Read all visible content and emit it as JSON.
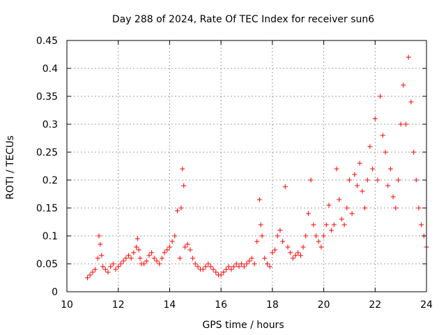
{
  "chart_data": {
    "type": "scatter",
    "title": "Day 288 of 2024, Rate Of TEC Index for receiver sun6",
    "xlabel": "GPS time / hours",
    "ylabel": "ROTI / TECUs",
    "xlim": [
      10,
      24
    ],
    "ylim": [
      0,
      0.45
    ],
    "x_ticks": [
      "10",
      "12",
      "14",
      "16",
      "18",
      "20",
      "22",
      "24"
    ],
    "y_ticks": [
      "0",
      "0.05",
      "0.1",
      "0.15",
      "0.2",
      "0.25",
      "0.3",
      "0.35",
      "0.4",
      "0.45"
    ],
    "grid": true,
    "marker": "+",
    "color": "#ff0000",
    "series": [
      {
        "x": [
          10.8,
          10.9,
          11.0,
          11.1,
          11.2,
          11.25,
          11.3,
          11.35,
          11.4,
          11.5,
          11.6,
          11.7,
          11.8,
          11.9,
          12.0,
          12.1,
          12.2,
          12.3,
          12.4,
          12.5,
          12.6,
          12.7,
          12.75,
          12.8,
          12.85,
          12.9,
          13.0,
          13.1,
          13.2,
          13.3,
          13.4,
          13.5,
          13.6,
          13.7,
          13.8,
          13.9,
          14.0,
          14.1,
          14.2,
          14.3,
          14.4,
          14.45,
          14.5,
          14.55,
          14.6,
          14.7,
          14.8,
          14.9,
          15.0,
          15.1,
          15.2,
          15.3,
          15.4,
          15.5,
          15.6,
          15.7,
          15.8,
          15.9,
          16.0,
          16.1,
          16.2,
          16.3,
          16.4,
          16.5,
          16.6,
          16.7,
          16.8,
          16.9,
          17.0,
          17.1,
          17.2,
          17.3,
          17.4,
          17.5,
          17.55,
          17.6,
          17.7,
          17.8,
          17.9,
          18.0,
          18.1,
          18.2,
          18.3,
          18.4,
          18.5,
          18.6,
          18.7,
          18.8,
          18.9,
          19.0,
          19.1,
          19.2,
          19.3,
          19.4,
          19.5,
          19.6,
          19.7,
          19.8,
          19.9,
          20.0,
          20.1,
          20.2,
          20.3,
          20.4,
          20.5,
          20.6,
          20.7,
          20.8,
          20.9,
          21.0,
          21.1,
          21.2,
          21.3,
          21.4,
          21.5,
          21.6,
          21.7,
          21.8,
          21.9,
          22.0,
          22.1,
          22.2,
          22.3,
          22.4,
          22.5,
          22.6,
          22.7,
          22.8,
          22.9,
          23.0,
          23.1,
          23.2,
          23.3,
          23.4,
          23.5,
          23.6,
          23.7,
          23.8,
          23.9,
          24.0
        ],
        "y": [
          0.025,
          0.03,
          0.035,
          0.04,
          0.06,
          0.1,
          0.085,
          0.065,
          0.045,
          0.04,
          0.035,
          0.045,
          0.05,
          0.04,
          0.045,
          0.05,
          0.055,
          0.06,
          0.065,
          0.06,
          0.07,
          0.08,
          0.095,
          0.075,
          0.06,
          0.05,
          0.05,
          0.055,
          0.065,
          0.07,
          0.06,
          0.055,
          0.05,
          0.06,
          0.07,
          0.075,
          0.08,
          0.09,
          0.1,
          0.145,
          0.06,
          0.15,
          0.22,
          0.19,
          0.08,
          0.085,
          0.075,
          0.06,
          0.05,
          0.045,
          0.04,
          0.04,
          0.045,
          0.05,
          0.045,
          0.04,
          0.035,
          0.03,
          0.03,
          0.035,
          0.04,
          0.045,
          0.04,
          0.045,
          0.05,
          0.045,
          0.05,
          0.045,
          0.05,
          0.055,
          0.06,
          0.05,
          0.09,
          0.165,
          0.12,
          0.1,
          0.06,
          0.05,
          0.045,
          0.07,
          0.075,
          0.1,
          0.11,
          0.09,
          0.188,
          0.08,
          0.07,
          0.06,
          0.065,
          0.07,
          0.065,
          0.08,
          0.1,
          0.14,
          0.2,
          0.12,
          0.1,
          0.09,
          0.08,
          0.1,
          0.12,
          0.155,
          0.11,
          0.12,
          0.22,
          0.165,
          0.13,
          0.12,
          0.15,
          0.2,
          0.14,
          0.21,
          0.19,
          0.23,
          0.18,
          0.15,
          0.2,
          0.26,
          0.22,
          0.31,
          0.2,
          0.35,
          0.28,
          0.25,
          0.19,
          0.22,
          0.17,
          0.15,
          0.2,
          0.3,
          0.37,
          0.3,
          0.42,
          0.34,
          0.25,
          0.2,
          0.15,
          0.12,
          0.1,
          0.08
        ]
      }
    ]
  }
}
